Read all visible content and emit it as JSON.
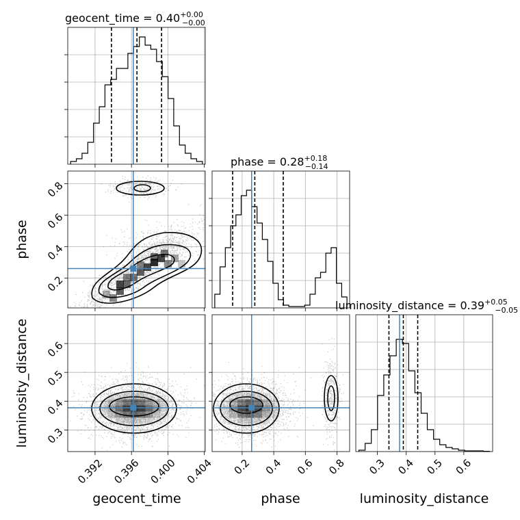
{
  "chart_data": {
    "type": "corner",
    "parameters": [
      "geocent_time",
      "phase",
      "luminosity_distance"
    ],
    "truths": {
      "geocent_time": 0.3962,
      "phase": 0.26,
      "luminosity_distance": 0.377
    },
    "titles": [
      {
        "label": "geocent_time = 0.40",
        "plus": "+0.00",
        "minus": "−0.00"
      },
      {
        "label": "phase = 0.28",
        "plus": "+0.18",
        "minus": "−0.14"
      },
      {
        "label": "luminosity_distance = 0.39",
        "plus": "+0.05",
        "minus": "−0.05"
      }
    ],
    "axis_labels": {
      "x": [
        "geocent_time",
        "phase",
        "luminosity_distance"
      ],
      "y": [
        "phase",
        "luminosity_distance"
      ]
    },
    "ranges": {
      "geocent_time": [
        0.389,
        0.4041
      ],
      "phase": [
        0.01,
        0.88
      ],
      "luminosity_distance": [
        0.225,
        0.7
      ]
    },
    "ticks": {
      "geocent_time": [
        0.392,
        0.396,
        0.4,
        0.404
      ],
      "geocent_time_labels": [
        "0.392",
        "0.396",
        "0.400",
        "0.404"
      ],
      "phase": [
        0.2,
        0.4,
        0.6,
        0.8
      ],
      "phase_labels": [
        "0.2",
        "0.4",
        "0.6",
        "0.8"
      ],
      "luminosity_distance_x": [
        0.3,
        0.4,
        0.5,
        0.6
      ],
      "luminosity_distance_x_labels": [
        "0.3",
        "0.4",
        "0.5",
        "0.6"
      ],
      "luminosity_distance_y": [
        0.3,
        0.4,
        0.5,
        0.6
      ],
      "luminosity_distance_y_labels": [
        "0.3",
        "0.4",
        "0.5",
        "0.6"
      ]
    },
    "quantiles": {
      "geocent_time": [
        0.3938,
        0.3966,
        0.3993
      ],
      "phase": [
        0.14,
        0.28,
        0.46
      ],
      "luminosity_distance": [
        0.34,
        0.39,
        0.44
      ]
    },
    "hist_geocent_time": [
      0.02,
      0.04,
      0.08,
      0.16,
      0.3,
      0.42,
      0.58,
      0.62,
      0.7,
      0.7,
      0.81,
      0.86,
      0.93,
      0.87,
      0.84,
      0.75,
      0.64,
      0.48,
      0.28,
      0.14,
      0.08,
      0.04,
      0.02
    ],
    "hist_phase": [
      0.1,
      0.3,
      0.44,
      0.6,
      0.68,
      0.82,
      0.86,
      0.74,
      0.62,
      0.5,
      0.34,
      0.18,
      0.06,
      0.02,
      0.01,
      0.01,
      0.01,
      0.02,
      0.1,
      0.22,
      0.26,
      0.4,
      0.44,
      0.18,
      0.08
    ],
    "hist_luminosity_distance": [
      0.01,
      0.06,
      0.16,
      0.41,
      0.56,
      0.7,
      0.82,
      0.79,
      0.59,
      0.43,
      0.28,
      0.16,
      0.09,
      0.05,
      0.03,
      0.02,
      0.01,
      0.005,
      0.005,
      0.005,
      0.002
    ],
    "colors": {
      "truth": "#4682b4",
      "hist": "#000000",
      "grid": "#b0b0b0"
    }
  }
}
